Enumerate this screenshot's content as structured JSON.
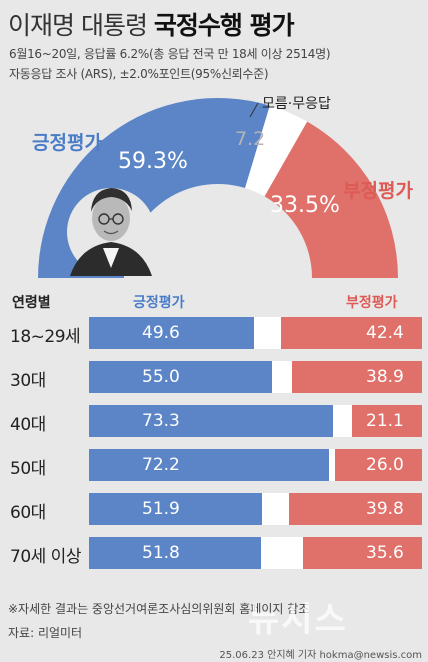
{
  "header": {
    "title_light": "이재명 대통령 ",
    "title_bold": "국정수행 평가",
    "subtitle1": "6월16~20일, 응답률 6.2%(총 응답 전국 만 18세 이상 2514명)",
    "subtitle2": "자동응답 조사 (ARS), ±2.0%포인트(95%신뢰수준)"
  },
  "colors": {
    "positive": "#5b85c6",
    "negative": "#e0706a",
    "undecided": "#ffffff"
  },
  "gauge": {
    "positive_label": "긍정평가",
    "negative_label": "부정평가",
    "undecided_label": "모름·무응답",
    "positive_value_text": "59.3%",
    "negative_value_text": "33.5%",
    "undecided_value_text": "7.2"
  },
  "table_headers": {
    "age": "연령별",
    "positive": "긍정평가",
    "negative": "부정평가"
  },
  "chart_data": [
    {
      "type": "pie",
      "style": "semicircle-donut",
      "categories": [
        "긍정평가",
        "모름·무응답",
        "부정평가"
      ],
      "values": [
        59.3,
        7.2,
        33.5
      ],
      "colors": [
        "#5b85c6",
        "#ffffff",
        "#e0706a"
      ]
    },
    {
      "type": "bar",
      "orientation": "horizontal",
      "stacked": true,
      "categories": [
        "18~29세",
        "30대",
        "40대",
        "50대",
        "60대",
        "70세 이상"
      ],
      "series": [
        {
          "name": "긍정평가",
          "values": [
            49.6,
            55.0,
            73.3,
            72.2,
            51.9,
            51.8
          ],
          "labels": [
            "49.6",
            "55.0",
            "73.3",
            "72.2",
            "51.9",
            "51.8"
          ]
        },
        {
          "name": "부정평가",
          "values": [
            42.4,
            38.9,
            21.1,
            26.0,
            39.8,
            35.6
          ],
          "labels": [
            "42.4",
            "38.9",
            "21.1",
            "26.0",
            "39.8",
            "35.6"
          ]
        }
      ],
      "xlim": [
        0,
        100
      ]
    }
  ],
  "footer": {
    "note": "※자세한 결과는 중앙선거여론조사심의위원회 홈페이지 참조",
    "source": "자료: 리얼미터",
    "credit": "25.06.23 안지혜 기자 hokma@newsis.com",
    "watermark": "뉴시스"
  }
}
